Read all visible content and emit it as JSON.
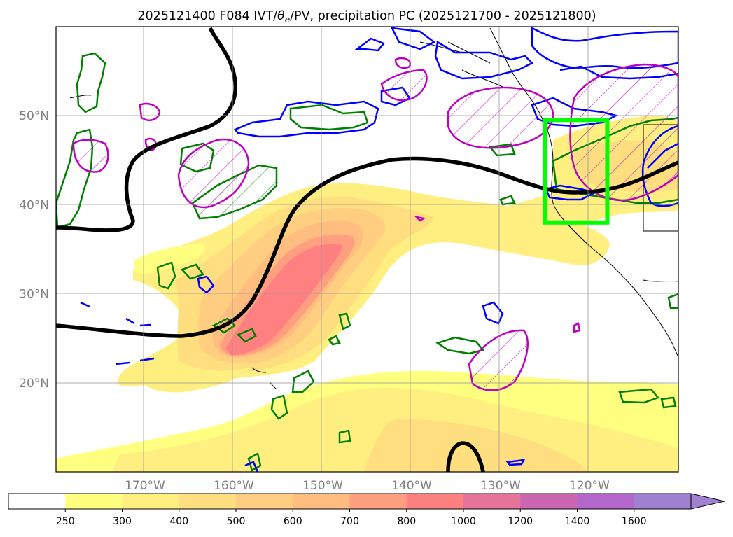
{
  "title": {
    "prefix": "2025121400 F084 IVT/",
    "theta": "θ",
    "theta_sub": "e",
    "suffix": "/PV, precipitation PC (2025121700 - 2025121800)"
  },
  "map": {
    "lon_range": [
      -180,
      -110
    ],
    "lat_range": [
      10,
      60
    ],
    "lat_labels": [
      {
        "lat": 50,
        "text": "50°N"
      },
      {
        "lat": 40,
        "text": "40°N"
      },
      {
        "lat": 30,
        "text": "30°N"
      },
      {
        "lat": 20,
        "text": "20°N"
      }
    ],
    "lon_labels": [
      {
        "lon": -170,
        "text": "170°W"
      },
      {
        "lon": -160,
        "text": "160°W"
      },
      {
        "lon": -150,
        "text": "150°W"
      },
      {
        "lon": -140,
        "text": "140°W"
      },
      {
        "lon": -130,
        "text": "130°W"
      },
      {
        "lon": -120,
        "text": "120°W"
      }
    ],
    "highlight_box": {
      "lon_min": -125,
      "lon_max": -118,
      "lat_min": 38,
      "lat_max": 49.5,
      "color": "#00ff00"
    },
    "contour_colors": {
      "pv": "#000000",
      "theta_e": "#0000ff",
      "precip_pc": "#008000",
      "ivt_anomaly": "#bf00bf"
    }
  },
  "colorbar": {
    "levels": [
      "250",
      "300",
      "400",
      "500",
      "600",
      "700",
      "800",
      "1000",
      "1200",
      "1400",
      "1600"
    ],
    "colors": [
      "#ffffff",
      "#ffff80",
      "#ffef80",
      "#ffde80",
      "#ffce80",
      "#ffbd80",
      "#ff9f80",
      "#ff8080",
      "#e67399",
      "#cc66b3",
      "#b366cc",
      "#a080d0"
    ]
  }
}
